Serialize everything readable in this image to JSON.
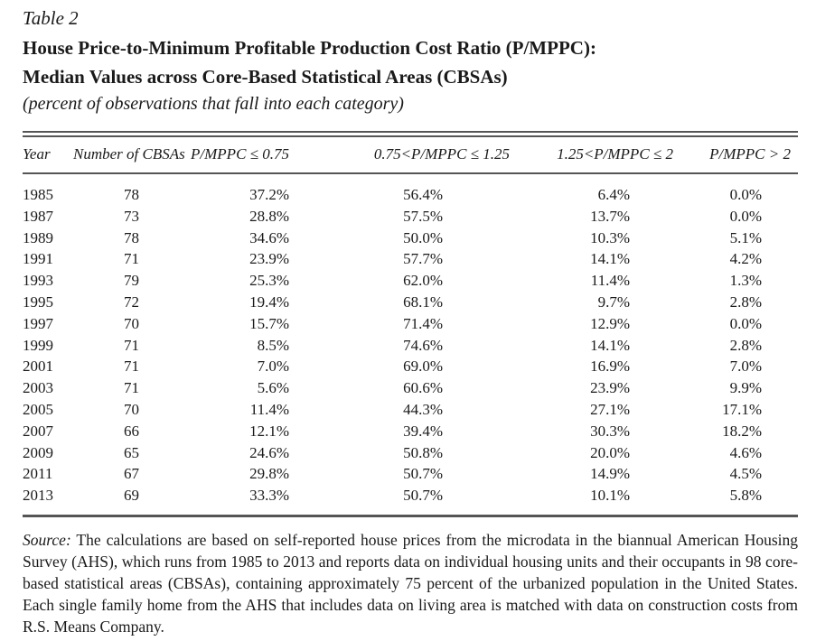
{
  "table": {
    "label": "Table 2",
    "title_line1": "House Price-to-Minimum Profitable Production Cost Ratio (P/MPPC):",
    "title_line2": "Median Values across Core-Based Statistical Areas (CBSAs)",
    "subtitle": "(percent of observations that fall into each category)",
    "columns": [
      "Year",
      "Number of CBSAs",
      "P/MPPC ≤ 0.75",
      "0.75<P/MPPC ≤ 1.25",
      "1.25<P/MPPC ≤ 2",
      "P/MPPC > 2"
    ],
    "rows": [
      [
        "1985",
        "78",
        "37.2%",
        "56.4%",
        "6.4%",
        "0.0%"
      ],
      [
        "1987",
        "73",
        "28.8%",
        "57.5%",
        "13.7%",
        "0.0%"
      ],
      [
        "1989",
        "78",
        "34.6%",
        "50.0%",
        "10.3%",
        "5.1%"
      ],
      [
        "1991",
        "71",
        "23.9%",
        "57.7%",
        "14.1%",
        "4.2%"
      ],
      [
        "1993",
        "79",
        "25.3%",
        "62.0%",
        "11.4%",
        "1.3%"
      ],
      [
        "1995",
        "72",
        "19.4%",
        "68.1%",
        "9.7%",
        "2.8%"
      ],
      [
        "1997",
        "70",
        "15.7%",
        "71.4%",
        "12.9%",
        "0.0%"
      ],
      [
        "1999",
        "71",
        "8.5%",
        "74.6%",
        "14.1%",
        "2.8%"
      ],
      [
        "2001",
        "71",
        "7.0%",
        "69.0%",
        "16.9%",
        "7.0%"
      ],
      [
        "2003",
        "71",
        "5.6%",
        "60.6%",
        "23.9%",
        "9.9%"
      ],
      [
        "2005",
        "70",
        "11.4%",
        "44.3%",
        "27.1%",
        "17.1%"
      ],
      [
        "2007",
        "66",
        "12.1%",
        "39.4%",
        "30.3%",
        "18.2%"
      ],
      [
        "2009",
        "65",
        "24.6%",
        "50.8%",
        "20.0%",
        "4.6%"
      ],
      [
        "2011",
        "67",
        "29.8%",
        "50.7%",
        "14.9%",
        "4.5%"
      ],
      [
        "2013",
        "69",
        "33.3%",
        "50.7%",
        "10.1%",
        "5.8%"
      ]
    ],
    "source_label": "Source:",
    "source_text": "The calculations are based on self-reported house prices from the microdata in the biannual American Housing Survey (AHS), which runs from 1985 to 2013 and reports data on individual housing units and their occupants in 98 core-based statistical areas (CBSAs), containing approximately 75 percent of the urbanized population in the United States. Each single family home from the AHS that includes data on living area is matched with data on construction costs from R.S. Means Company."
  }
}
